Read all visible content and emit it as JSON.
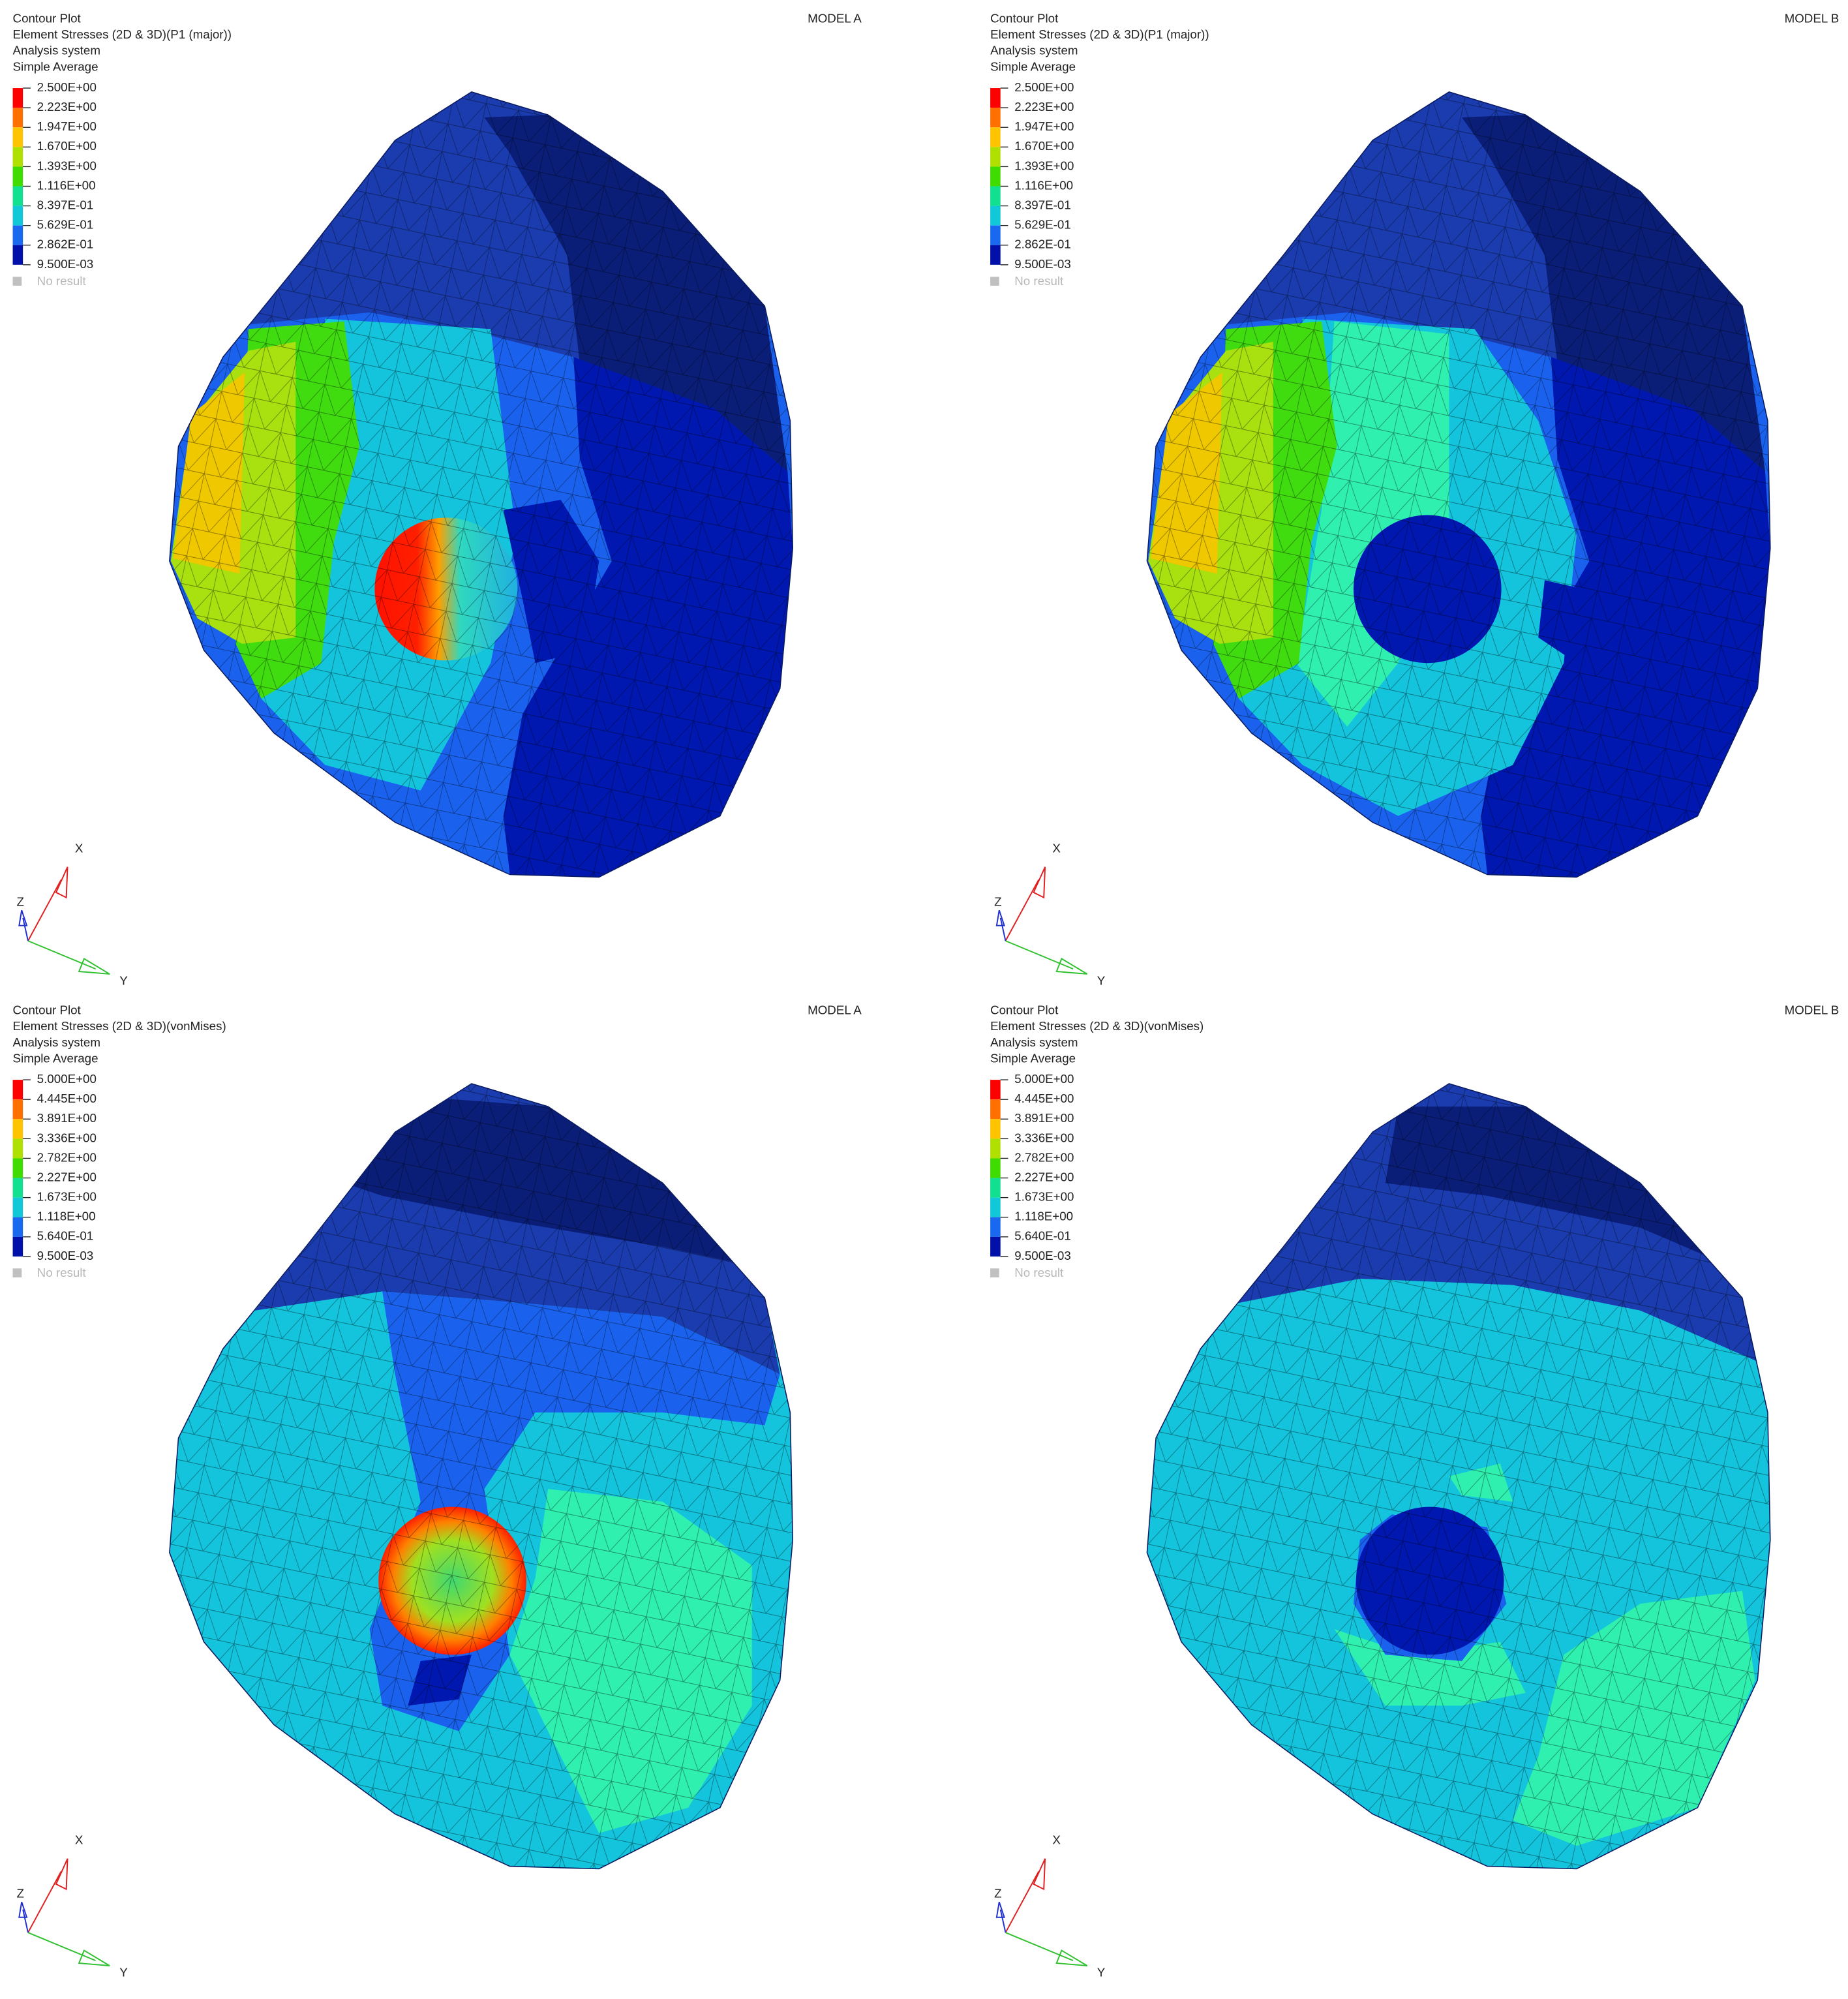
{
  "panels": [
    {
      "header": [
        "Contour Plot",
        "Element Stresses (2D & 3D)(P1 (major))",
        "Analysis system",
        "Simple Average"
      ],
      "model": "MODEL A",
      "legend": [
        "2.500E+00",
        "2.223E+00",
        "1.947E+00",
        "1.670E+00",
        "1.393E+00",
        "1.116E+00",
        "8.397E-01",
        "5.629E-01",
        "2.862E-01",
        "9.500E-03"
      ],
      "no_result": "No result",
      "axes": {
        "x": "X",
        "y": "Y",
        "z": "Z"
      }
    },
    {
      "header": [
        "Contour Plot",
        "Element Stresses (2D & 3D)(P1 (major))",
        "Analysis system",
        "Simple Average"
      ],
      "model": "MODEL B",
      "legend": [
        "2.500E+00",
        "2.223E+00",
        "1.947E+00",
        "1.670E+00",
        "1.393E+00",
        "1.116E+00",
        "8.397E-01",
        "5.629E-01",
        "2.862E-01",
        "9.500E-03"
      ],
      "no_result": "No result",
      "axes": {
        "x": "X",
        "y": "Y",
        "z": "Z"
      }
    },
    {
      "header": [
        "Contour Plot",
        "Element Stresses (2D & 3D)(vonMises)",
        "Analysis system",
        "Simple Average"
      ],
      "model": "MODEL A",
      "legend": [
        "5.000E+00",
        "4.445E+00",
        "3.891E+00",
        "3.336E+00",
        "2.782E+00",
        "2.227E+00",
        "1.673E+00",
        "1.118E+00",
        "5.640E-01",
        "9.500E-03"
      ],
      "no_result": "No result",
      "axes": {
        "x": "X",
        "y": "Y",
        "z": "Z"
      }
    },
    {
      "header": [
        "Contour Plot",
        "Element Stresses (2D & 3D)(vonMises)",
        "Analysis system",
        "Simple Average"
      ],
      "model": "MODEL B",
      "legend": [
        "5.000E+00",
        "4.445E+00",
        "3.891E+00",
        "3.336E+00",
        "2.782E+00",
        "2.227E+00",
        "1.673E+00",
        "1.118E+00",
        "5.640E-01",
        "9.500E-03"
      ],
      "no_result": "No result",
      "axes": {
        "x": "X",
        "y": "Y",
        "z": "Z"
      }
    }
  ]
}
